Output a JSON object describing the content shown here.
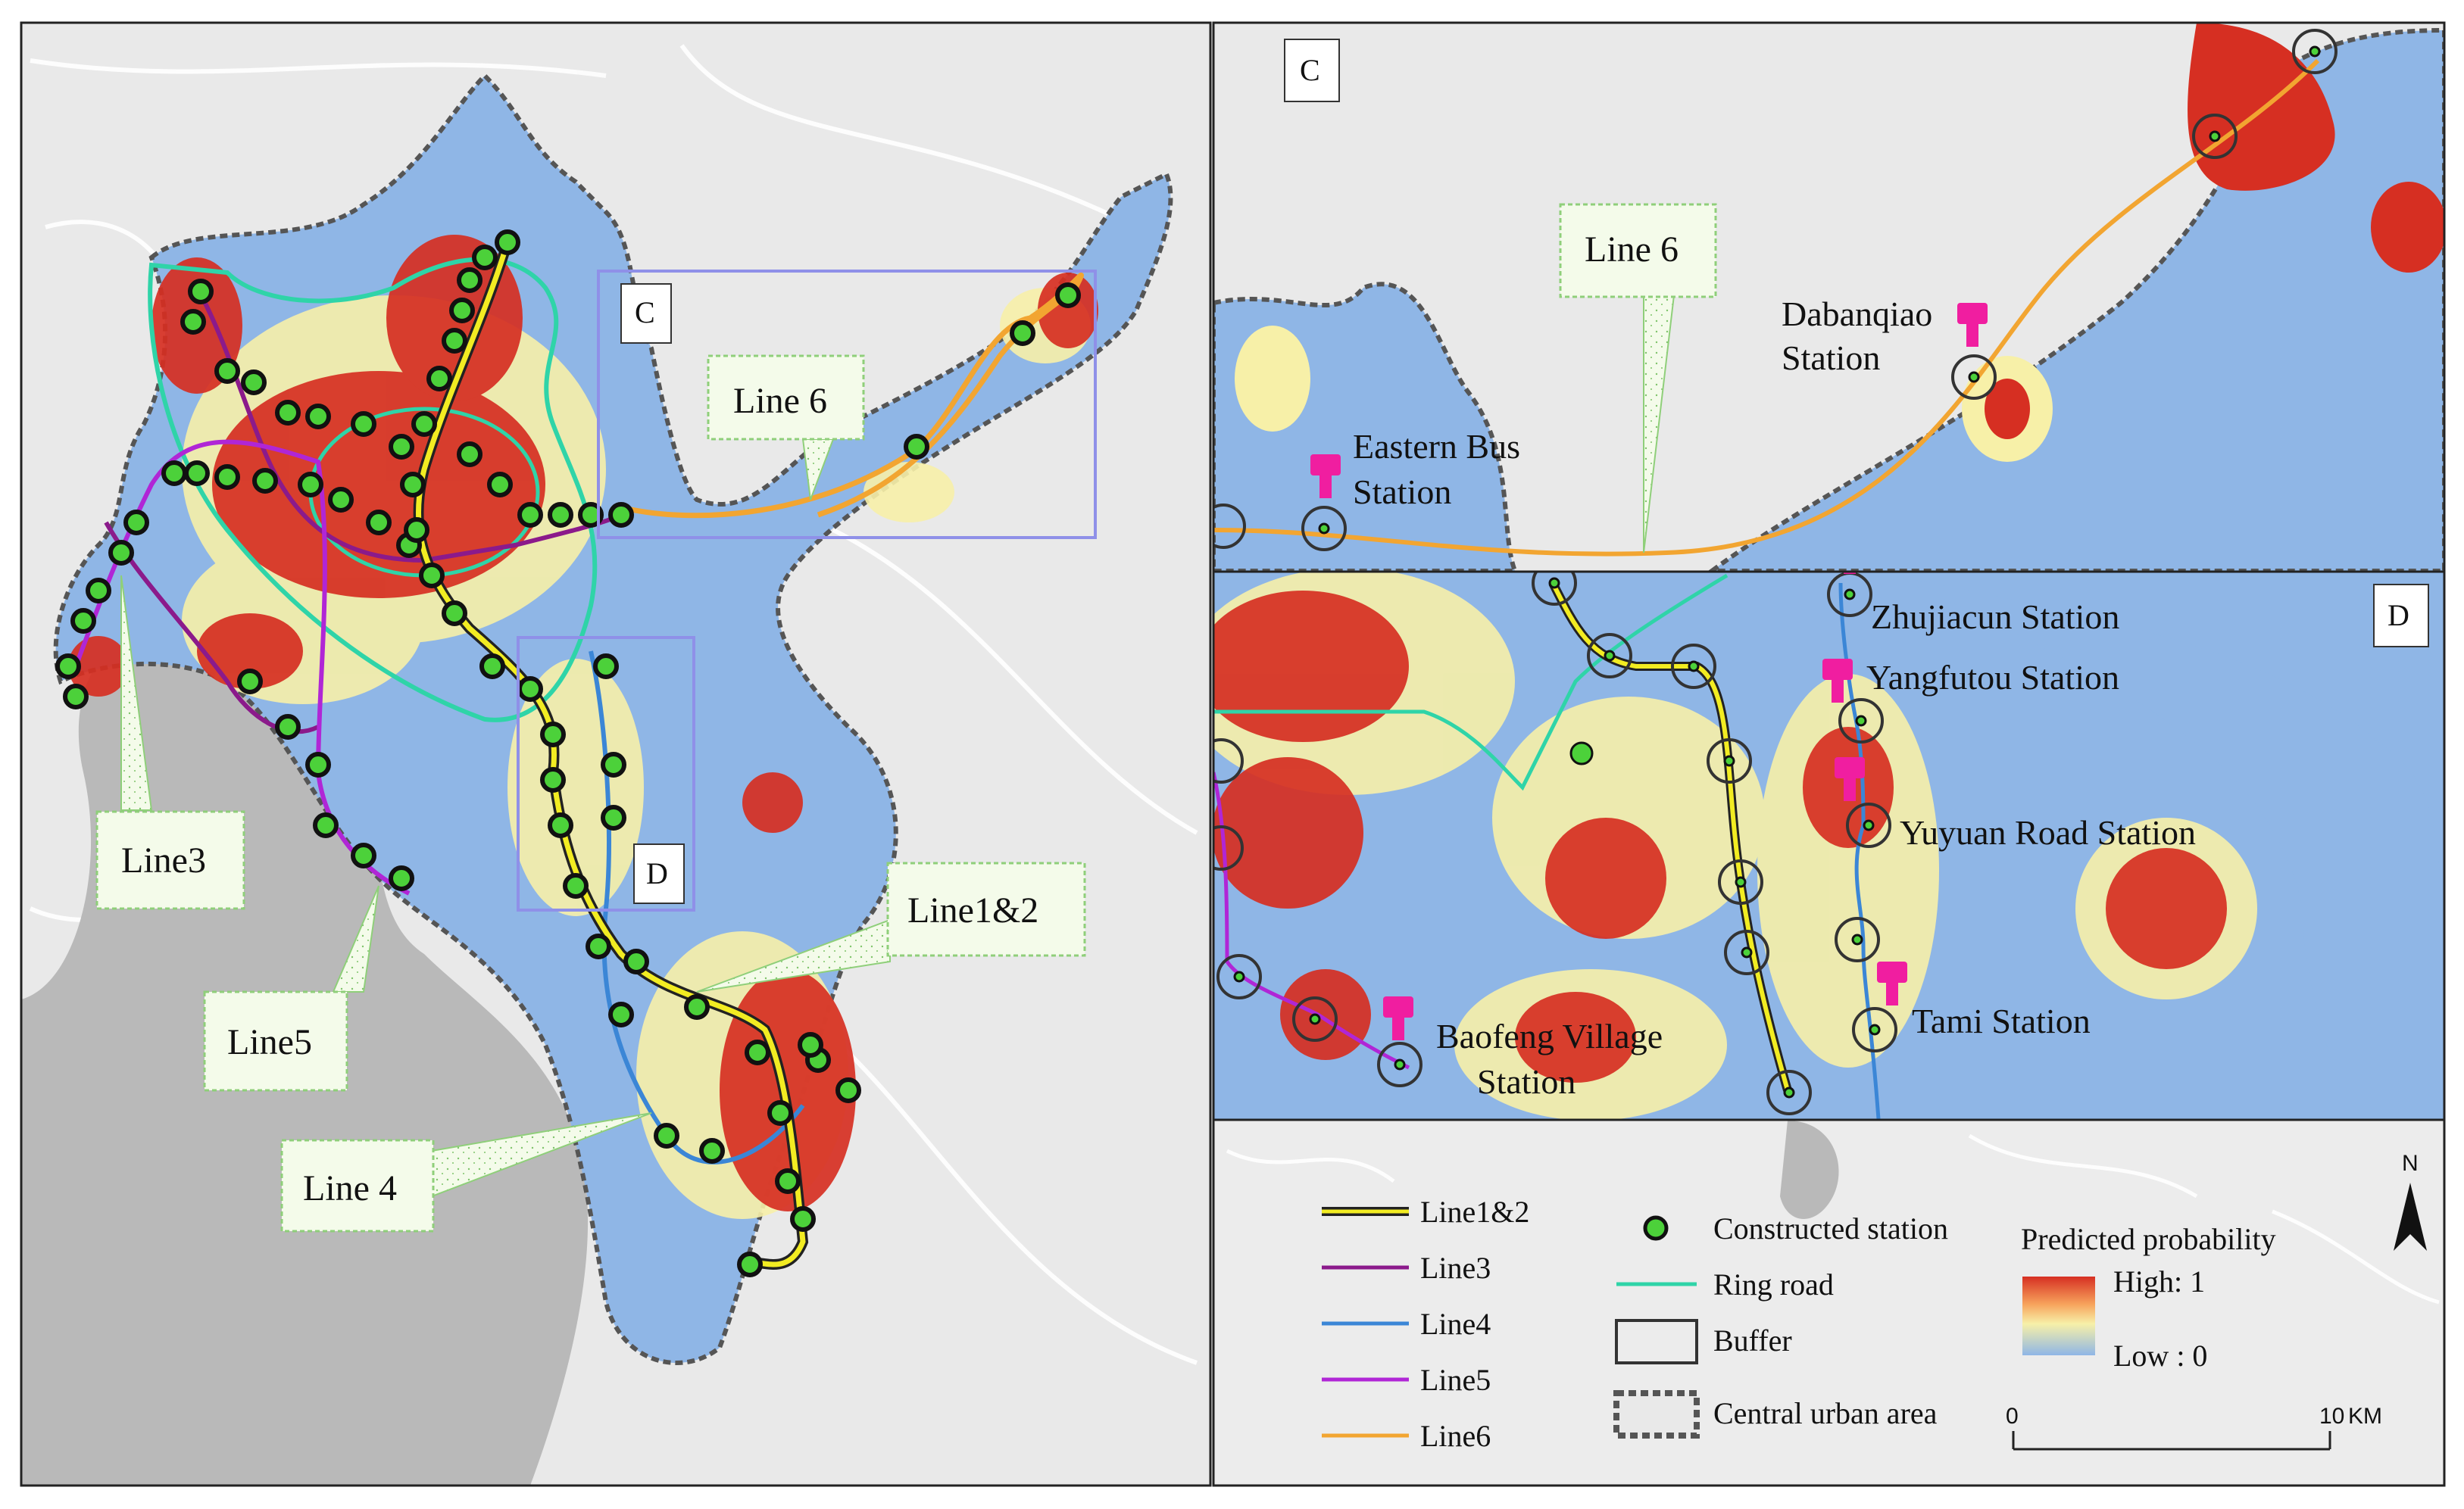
{
  "panels": {
    "overview": {
      "callouts": {
        "line6": "Line 6",
        "line3": "Line3",
        "line5": "Line5",
        "line4": "Line 4",
        "line12": "Line1&2"
      },
      "inset_labels": {
        "c": "C",
        "d": "D"
      }
    },
    "panel_c": {
      "letter": "C",
      "callout": "Line 6",
      "stations": {
        "dabanqiao": [
          "Dabanqiao",
          "Station"
        ],
        "eastern_bus": [
          "Eastern Bus",
          "Station"
        ]
      }
    },
    "panel_d": {
      "letter": "D",
      "stations": {
        "zhujiacun": "Zhujiacun Station",
        "yangfutou": "Yangfutou Station",
        "yuyuan": "Yuyuan Road Station",
        "tami": "Tami Station",
        "baofeng": [
          "Baofeng Village",
          "Station"
        ]
      }
    }
  },
  "legend": {
    "lines": [
      {
        "label": "Line1&2",
        "color": "#f2ec22",
        "outline": "#222222"
      },
      {
        "label": "Line3",
        "color": "#8b1a8b"
      },
      {
        "label": "Line4",
        "color": "#3b86d6"
      },
      {
        "label": "Line5",
        "color": "#b026d6"
      },
      {
        "label": "Line6",
        "color": "#f2a531"
      }
    ],
    "symbols": {
      "constructed_station": "Constructed station",
      "ring_road": "Ring road",
      "buffer": "Buffer",
      "central_urban_area": "Central urban area"
    },
    "probability": {
      "title": "Predicted probability",
      "high": "High: 1",
      "low": "Low : 0"
    },
    "scale": {
      "start": "0",
      "end": "10",
      "unit": "KM"
    },
    "north": "N"
  },
  "colors": {
    "background": "#e9e9e9",
    "water": "#b9b9b9",
    "low_prob": "#8fb6e6",
    "mid_prob": "#f7f0a8",
    "high_prob": "#d62f22",
    "ring_road": "#2fd4a8",
    "inset_frame": "#8f90e8"
  }
}
